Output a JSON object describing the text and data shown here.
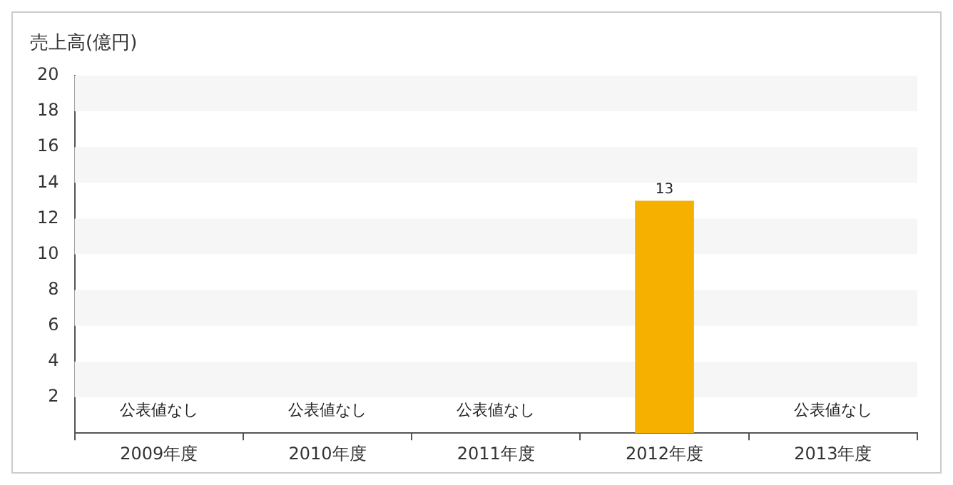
{
  "chart_data": {
    "type": "bar",
    "ylabel": "売上高(億円)",
    "categories": [
      "2009年度",
      "2010年度",
      "2011年度",
      "2012年度",
      "2013年度"
    ],
    "values": [
      null,
      null,
      null,
      13,
      null
    ],
    "value_labels": [
      "公表値なし",
      "公表値なし",
      "公表値なし",
      "13",
      "公表値なし"
    ],
    "color": "#f5b000",
    "ylim": [
      0,
      20
    ],
    "yticks": [
      2,
      4,
      6,
      8,
      10,
      12,
      14,
      16,
      18,
      20
    ],
    "bands": [
      {
        "axis": "y",
        "from": 2,
        "to": 4,
        "color": "#f6f6f6"
      },
      {
        "axis": "y",
        "from": 6,
        "to": 8,
        "color": "#f6f6f6"
      },
      {
        "axis": "y",
        "from": 10,
        "to": 12,
        "color": "#f6f6f6"
      },
      {
        "axis": "y",
        "from": 14,
        "to": 16,
        "color": "#f6f6f6"
      },
      {
        "axis": "y",
        "from": 18,
        "to": 20,
        "color": "#f6f6f6"
      }
    ]
  }
}
